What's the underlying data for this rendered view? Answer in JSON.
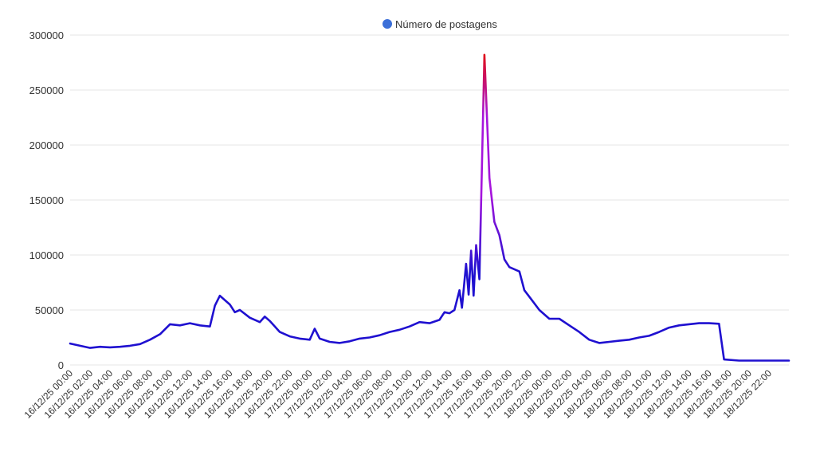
{
  "chart_data": {
    "type": "line",
    "title": "",
    "xlabel": "",
    "ylabel": "",
    "legend": {
      "label": "Número de postagens",
      "position": "top-center",
      "marker_color": "#3b6fd8"
    },
    "ylim": [
      0,
      300000
    ],
    "yticks": [
      "0",
      "50000",
      "100000",
      "150000",
      "200000",
      "250000",
      "300000"
    ],
    "grid": true,
    "gradient_colors": {
      "low": "#1f10d0",
      "mid": "#a614dc",
      "high": "#e0101a"
    },
    "x_tick_labels": [
      "16/12/25 00:00",
      "16/12/25 02:00",
      "16/12/25 04:00",
      "16/12/25 06:00",
      "16/12/25 08:00",
      "16/12/25 10:00",
      "16/12/25 12:00",
      "16/12/25 14:00",
      "16/12/25 16:00",
      "16/12/25 18:00",
      "16/12/25 20:00",
      "16/12/25 22:00",
      "17/12/25 00:00",
      "17/12/25 02:00",
      "17/12/25 04:00",
      "17/12/25 06:00",
      "17/12/25 08:00",
      "17/12/25 10:00",
      "17/12/25 12:00",
      "17/12/25 14:00",
      "17/12/25 16:00",
      "17/12/25 18:00",
      "17/12/25 20:00",
      "17/12/25 22:00",
      "18/12/25 00:00",
      "18/12/25 02:00",
      "18/12/25 04:00",
      "18/12/25 06:00",
      "18/12/25 08:00",
      "18/12/25 10:00",
      "18/12/25 12:00",
      "18/12/25 14:00",
      "18/12/25 16:00",
      "18/12/25 18:00",
      "18/12/25 20:00",
      "18/12/25 22:00"
    ],
    "series": [
      {
        "name": "Número de postagens",
        "points": [
          [
            "16/12/25 00:00",
            19500
          ],
          [
            "16/12/25 01:00",
            17500
          ],
          [
            "16/12/25 02:00",
            15500
          ],
          [
            "16/12/25 03:00",
            16500
          ],
          [
            "16/12/25 04:00",
            16000
          ],
          [
            "16/12/25 05:00",
            16500
          ],
          [
            "16/12/25 06:00",
            17500
          ],
          [
            "16/12/25 07:00",
            19000
          ],
          [
            "16/12/25 08:00",
            23000
          ],
          [
            "16/12/25 09:00",
            28000
          ],
          [
            "16/12/25 10:00",
            37000
          ],
          [
            "16/12/25 11:00",
            36000
          ],
          [
            "16/12/25 12:00",
            38000
          ],
          [
            "16/12/25 13:00",
            36000
          ],
          [
            "16/12/25 14:00",
            35000
          ],
          [
            "16/12/25 14:30",
            54000
          ],
          [
            "16/12/25 15:00",
            63000
          ],
          [
            "16/12/25 16:00",
            55000
          ],
          [
            "16/12/25 16:30",
            48000
          ],
          [
            "16/12/25 17:00",
            50000
          ],
          [
            "16/12/25 18:00",
            43000
          ],
          [
            "16/12/25 19:00",
            39000
          ],
          [
            "16/12/25 19:30",
            44000
          ],
          [
            "16/12/25 20:00",
            40000
          ],
          [
            "16/12/25 21:00",
            30000
          ],
          [
            "16/12/25 22:00",
            26000
          ],
          [
            "16/12/25 23:00",
            24000
          ],
          [
            "17/12/25 00:00",
            23000
          ],
          [
            "17/12/25 00:30",
            33000
          ],
          [
            "17/12/25 01:00",
            24000
          ],
          [
            "17/12/25 02:00",
            21000
          ],
          [
            "17/12/25 03:00",
            20000
          ],
          [
            "17/12/25 04:00",
            21500
          ],
          [
            "17/12/25 05:00",
            24000
          ],
          [
            "17/12/25 06:00",
            25000
          ],
          [
            "17/12/25 07:00",
            27000
          ],
          [
            "17/12/25 08:00",
            30000
          ],
          [
            "17/12/25 09:00",
            32000
          ],
          [
            "17/12/25 10:00",
            35000
          ],
          [
            "17/12/25 11:00",
            39000
          ],
          [
            "17/12/25 12:00",
            38000
          ],
          [
            "17/12/25 13:00",
            41000
          ],
          [
            "17/12/25 13:30",
            48000
          ],
          [
            "17/12/25 14:00",
            47000
          ],
          [
            "17/12/25 14:30",
            50000
          ],
          [
            "17/12/25 15:00",
            68000
          ],
          [
            "17/12/25 15:15",
            52000
          ],
          [
            "17/12/25 15:40",
            92000
          ],
          [
            "17/12/25 15:55",
            64000
          ],
          [
            "17/12/25 16:10",
            104000
          ],
          [
            "17/12/25 16:25",
            63000
          ],
          [
            "17/12/25 16:40",
            109000
          ],
          [
            "17/12/25 17:00",
            78000
          ],
          [
            "17/12/25 17:30",
            282000
          ],
          [
            "17/12/25 18:00",
            170000
          ],
          [
            "17/12/25 18:30",
            130000
          ],
          [
            "17/12/25 19:00",
            118000
          ],
          [
            "17/12/25 19:30",
            96000
          ],
          [
            "17/12/25 20:00",
            89000
          ],
          [
            "17/12/25 21:00",
            85000
          ],
          [
            "17/12/25 21:30",
            68000
          ],
          [
            "17/12/25 22:00",
            62000
          ],
          [
            "17/12/25 23:00",
            50000
          ],
          [
            "18/12/25 00:00",
            42000
          ],
          [
            "18/12/25 01:00",
            42000
          ],
          [
            "18/12/25 02:00",
            36000
          ],
          [
            "18/12/25 03:00",
            30000
          ],
          [
            "18/12/25 04:00",
            23000
          ],
          [
            "18/12/25 05:00",
            20000
          ],
          [
            "18/12/25 06:00",
            21000
          ],
          [
            "18/12/25 07:00",
            22000
          ],
          [
            "18/12/25 08:00",
            23000
          ],
          [
            "18/12/25 09:00",
            25000
          ],
          [
            "18/12/25 10:00",
            26500
          ],
          [
            "18/12/25 11:00",
            30000
          ],
          [
            "18/12/25 12:00",
            34000
          ],
          [
            "18/12/25 13:00",
            36000
          ],
          [
            "18/12/25 14:00",
            37000
          ],
          [
            "18/12/25 15:00",
            38000
          ],
          [
            "18/12/25 16:00",
            38000
          ],
          [
            "18/12/25 17:00",
            37500
          ],
          [
            "18/12/25 17:30",
            5000
          ],
          [
            "18/12/25 19:00",
            4000
          ],
          [
            "18/12/25 22:00",
            4000
          ],
          [
            "19/12/25 00:00",
            4000
          ]
        ]
      }
    ]
  }
}
